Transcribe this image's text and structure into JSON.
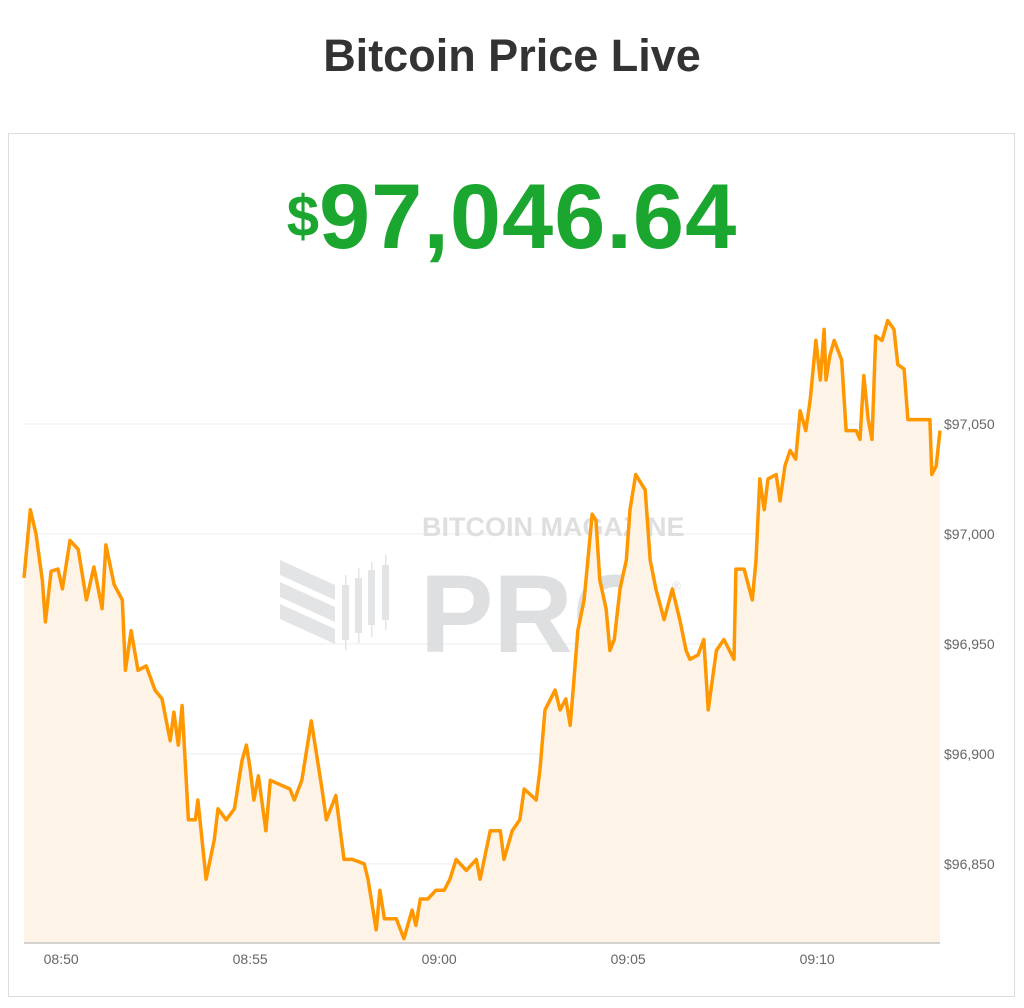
{
  "page": {
    "title": "Bitcoin Price Live"
  },
  "price": {
    "currency_symbol": "$",
    "value": "97,046.64",
    "color": "#1ba62f"
  },
  "watermark": {
    "line1": "BITCOIN MAGAZINE",
    "line2": "PRO",
    "registered": "®"
  },
  "chart_data": {
    "type": "area",
    "title": "",
    "xlabel": "",
    "ylabel": "",
    "line_color": "#ff9800",
    "fill_color": "#fdf3e7",
    "grid": true,
    "y_axis_position": "right",
    "xlim": [
      "08:49:01",
      "09:13:15"
    ],
    "ylim": [
      96814,
      97110
    ],
    "x_ticks": [
      "08:50",
      "08:55",
      "09:00",
      "09:05",
      "09:10"
    ],
    "y_ticks": [
      96850,
      96900,
      96950,
      97000,
      97050
    ],
    "y_tick_labels": [
      "$96,850",
      "$96,900",
      "$96,950",
      "$97,000",
      "$97,050"
    ],
    "points": [
      [
        "08:49:01",
        96980
      ],
      [
        "08:49:11",
        97011
      ],
      [
        "08:49:20",
        97000
      ],
      [
        "08:49:30",
        96979
      ],
      [
        "08:49:35",
        96960
      ],
      [
        "08:49:44",
        96983
      ],
      [
        "08:49:55",
        96984
      ],
      [
        "08:50:02",
        96975
      ],
      [
        "08:50:14",
        96997
      ],
      [
        "08:50:27",
        96993
      ],
      [
        "08:50:40",
        96970
      ],
      [
        "08:50:52",
        96985
      ],
      [
        "08:51:05",
        96966
      ],
      [
        "08:51:11",
        96995
      ],
      [
        "08:51:24",
        96977
      ],
      [
        "08:51:37",
        96970
      ],
      [
        "08:51:42",
        96938
      ],
      [
        "08:51:51",
        96956
      ],
      [
        "08:52:02",
        96938
      ],
      [
        "08:52:15",
        96940
      ],
      [
        "08:52:29",
        96929
      ],
      [
        "08:52:40",
        96925
      ],
      [
        "08:52:53",
        96906
      ],
      [
        "08:52:59",
        96919
      ],
      [
        "08:53:06",
        96904
      ],
      [
        "08:53:12",
        96922
      ],
      [
        "08:53:22",
        96870
      ],
      [
        "08:53:33",
        96870
      ],
      [
        "08:53:37",
        96879
      ],
      [
        "08:53:50",
        96843
      ],
      [
        "08:54:03",
        96861
      ],
      [
        "08:54:09",
        96875
      ],
      [
        "08:54:22",
        96870
      ],
      [
        "08:54:35",
        96875
      ],
      [
        "08:54:47",
        96897
      ],
      [
        "08:54:54",
        96904
      ],
      [
        "08:55:00",
        96893
      ],
      [
        "08:55:06",
        96879
      ],
      [
        "08:55:13",
        96890
      ],
      [
        "08:55:25",
        96865
      ],
      [
        "08:55:32",
        96888
      ],
      [
        "08:56:03",
        96884
      ],
      [
        "08:56:10",
        96879
      ],
      [
        "08:56:22",
        96888
      ],
      [
        "08:56:37",
        96915
      ],
      [
        "08:56:43",
        96904
      ],
      [
        "08:56:54",
        96884
      ],
      [
        "08:57:01",
        96870
      ],
      [
        "08:57:16",
        96881
      ],
      [
        "08:57:23",
        96865
      ],
      [
        "08:57:29",
        96852
      ],
      [
        "08:57:42",
        96852
      ],
      [
        "08:58:01",
        96850
      ],
      [
        "08:58:07",
        96843
      ],
      [
        "08:58:20",
        96820
      ],
      [
        "08:58:26",
        96838
      ],
      [
        "08:58:33",
        96825
      ],
      [
        "08:58:52",
        96825
      ],
      [
        "08:59:04",
        96816
      ],
      [
        "08:59:17",
        96829
      ],
      [
        "08:59:23",
        96822
      ],
      [
        "08:59:30",
        96834
      ],
      [
        "08:59:42",
        96834
      ],
      [
        "08:59:55",
        96838
      ],
      [
        "09:00:08",
        96838
      ],
      [
        "09:00:17",
        96843
      ],
      [
        "09:00:27",
        96852
      ],
      [
        "09:00:43",
        96847
      ],
      [
        "09:00:59",
        96852
      ],
      [
        "09:01:05",
        96843
      ],
      [
        "09:01:21",
        96865
      ],
      [
        "09:01:37",
        96865
      ],
      [
        "09:01:43",
        96852
      ],
      [
        "09:01:56",
        96865
      ],
      [
        "09:02:08",
        96870
      ],
      [
        "09:02:15",
        96884
      ],
      [
        "09:02:34",
        96879
      ],
      [
        "09:02:40",
        96893
      ],
      [
        "09:02:48",
        96920
      ],
      [
        "09:03:04",
        96929
      ],
      [
        "09:03:12",
        96920
      ],
      [
        "09:03:21",
        96925
      ],
      [
        "09:03:28",
        96913
      ],
      [
        "09:03:34",
        96934
      ],
      [
        "09:03:40",
        96956
      ],
      [
        "09:03:50",
        96970
      ],
      [
        "09:04:03",
        97009
      ],
      [
        "09:04:09",
        97006
      ],
      [
        "09:04:15",
        96979
      ],
      [
        "09:04:25",
        96966
      ],
      [
        "09:04:31",
        96947
      ],
      [
        "09:04:38",
        96952
      ],
      [
        "09:04:47",
        96975
      ],
      [
        "09:04:57",
        96988
      ],
      [
        "09:05:03",
        97011
      ],
      [
        "09:05:12",
        97027
      ],
      [
        "09:05:27",
        97020
      ],
      [
        "09:05:35",
        96988
      ],
      [
        "09:05:44",
        96975
      ],
      [
        "09:05:57",
        96961
      ],
      [
        "09:06:10",
        96975
      ],
      [
        "09:06:22",
        96961
      ],
      [
        "09:06:32",
        96947
      ],
      [
        "09:06:38",
        96943
      ],
      [
        "09:06:51",
        96945
      ],
      [
        "09:07:00",
        96952
      ],
      [
        "09:07:07",
        96920
      ],
      [
        "09:07:20",
        96947
      ],
      [
        "09:07:32",
        96952
      ],
      [
        "09:07:48",
        96943
      ],
      [
        "09:07:51",
        96984
      ],
      [
        "09:08:04",
        96984
      ],
      [
        "09:08:17",
        96970
      ],
      [
        "09:08:23",
        96988
      ],
      [
        "09:08:29",
        97025
      ],
      [
        "09:08:36",
        97011
      ],
      [
        "09:08:42",
        97025
      ],
      [
        "09:08:55",
        97027
      ],
      [
        "09:09:01",
        97015
      ],
      [
        "09:09:09",
        97031
      ],
      [
        "09:09:17",
        97038
      ],
      [
        "09:09:26",
        97034
      ],
      [
        "09:09:33",
        97056
      ],
      [
        "09:09:42",
        97047
      ],
      [
        "09:09:49",
        97061
      ],
      [
        "09:09:58",
        97088
      ],
      [
        "09:10:05",
        97070
      ],
      [
        "09:10:11",
        97093
      ],
      [
        "09:10:14",
        97070
      ],
      [
        "09:10:20",
        97081
      ],
      [
        "09:10:27",
        97088
      ],
      [
        "09:10:39",
        97079
      ],
      [
        "09:10:46",
        97047
      ],
      [
        "09:11:02",
        97047
      ],
      [
        "09:11:08",
        97043
      ],
      [
        "09:11:14",
        97072
      ],
      [
        "09:11:21",
        97052
      ],
      [
        "09:11:27",
        97043
      ],
      [
        "09:11:33",
        97090
      ],
      [
        "09:11:43",
        97088
      ],
      [
        "09:11:52",
        97097
      ],
      [
        "09:12:02",
        97093
      ],
      [
        "09:12:08",
        97077
      ],
      [
        "09:12:18",
        97075
      ],
      [
        "09:12:24",
        97052
      ],
      [
        "09:12:59",
        97052
      ],
      [
        "09:13:02",
        97027
      ],
      [
        "09:13:09",
        97031
      ],
      [
        "09:13:15",
        97047
      ]
    ]
  }
}
